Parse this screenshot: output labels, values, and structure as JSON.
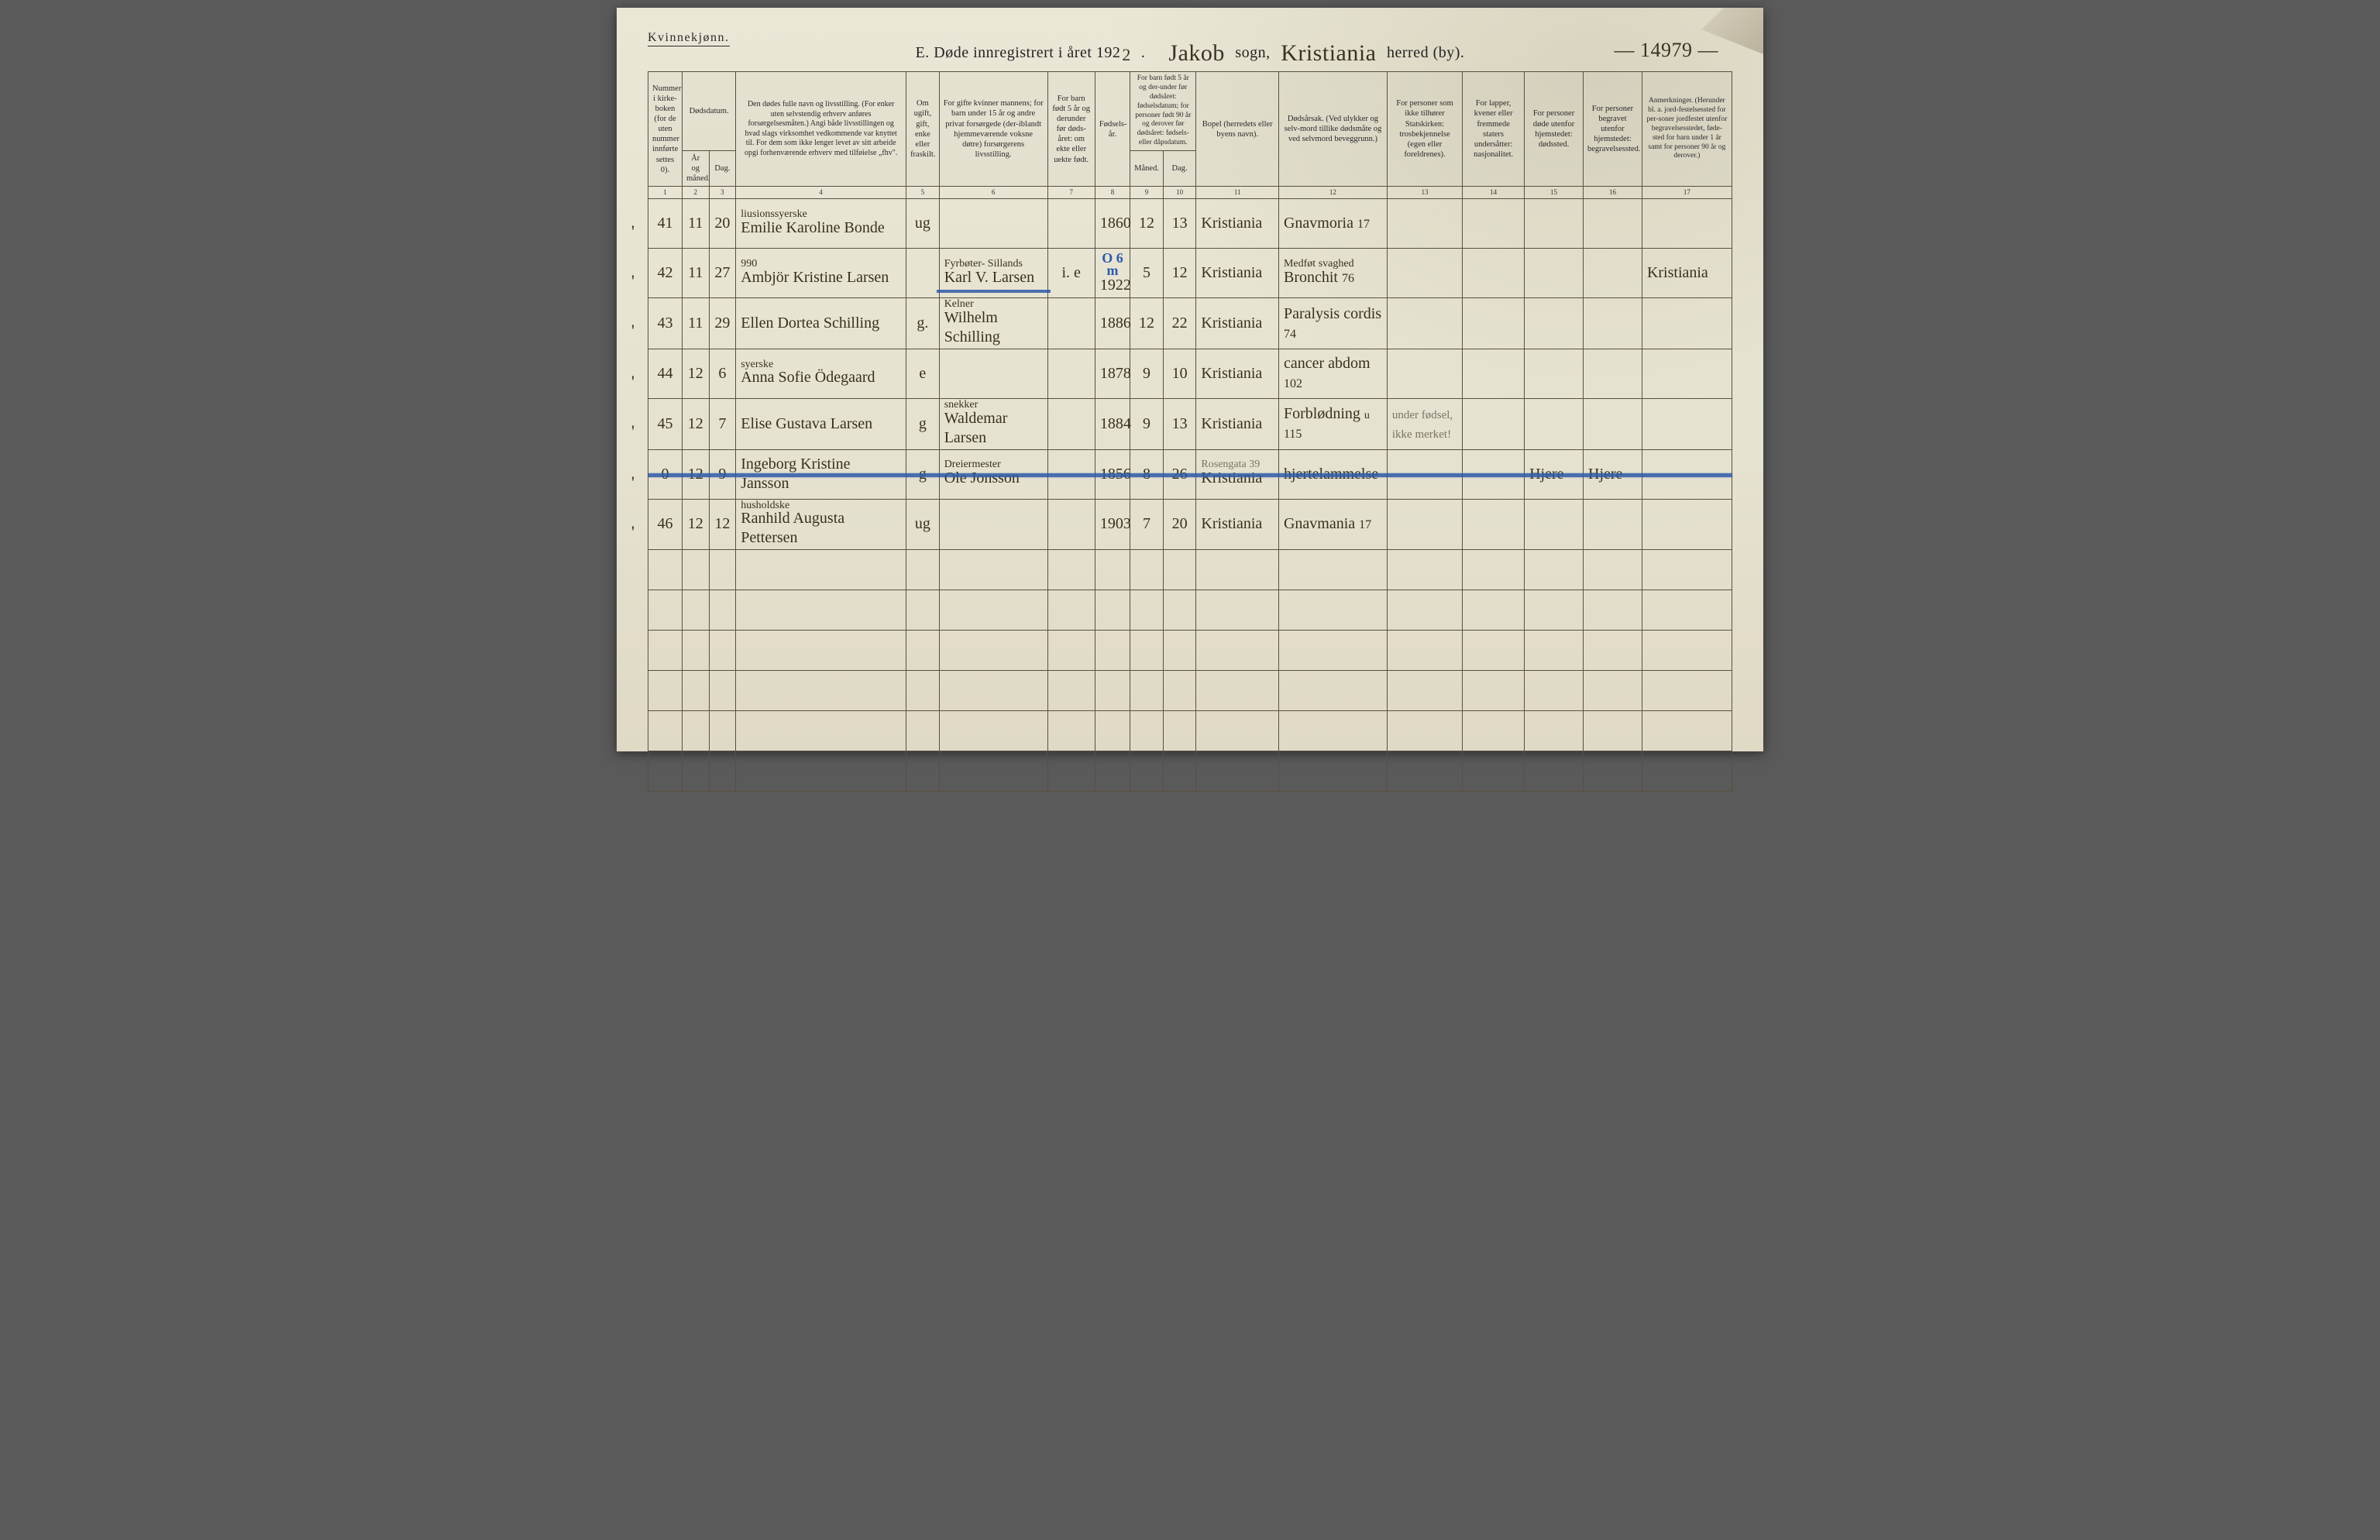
{
  "page": {
    "gender_label": "Kvinnekjønn.",
    "title_prefix": "E.   Døde innregistrert i året 192",
    "year_suffix": "2",
    "sogn_label": "sogn,",
    "herred_label": "herred (by).",
    "sogn_hw": "Jakob",
    "herred_hw": "Kristiania",
    "page_number_hw": "— 14979 —",
    "background_color": "#e8e4d4",
    "header_text_color": "#2a2a2a",
    "handwriting_color": "#3a2f1d",
    "pencil_color": "#7a7468",
    "blue_line_color": "#2d5aa8",
    "rule_color": "#585040"
  },
  "columns": {
    "widths_pct": [
      3.3,
      2.6,
      2.6,
      16.5,
      3.2,
      10.5,
      4.6,
      3.4,
      3.2,
      3.2,
      8.0,
      10.5,
      7.3,
      6.0,
      5.7,
      5.7,
      8.7
    ],
    "numbers": [
      "1",
      "2",
      "3",
      "4",
      "5",
      "6",
      "7",
      "8",
      "9",
      "10",
      "11",
      "12",
      "13",
      "14",
      "15",
      "16",
      "17"
    ],
    "headers_row1": {
      "c1": "Nummer i kirke-boken (for de uten nummer innførte settes 0).",
      "c2_3": "Dødsdatum.",
      "c4": "Den dødes fulle navn og livsstilling.\n(For enker uten selvstendig erhverv anføres forsørgelsesmåten.)\nAngi både livsstillingen og hvad slags virksomhet vedkommende var knyttet til.\nFor dem som ikke lenger levet av sitt arbeide opgi forhenværende erhverv med tilføielse „fhv\".",
      "c5": "Om ugift, gift, enke eller fraskilt.",
      "c6": "For gifte kvinner mannens; for barn under 15 år og andre privat forsørgede (der-iblandt hjemmeværende voksne døtre) forsørgerens livsstilling.",
      "c7": "For barn født 5 år og derunder før døds-året: om ekte eller uekte født.",
      "c8": "Fødsels-år.",
      "c9_10": "For barn født 5 år og der-under før dødsåret: fødselsdatum; for personer født 90 år og derover før dødsåret: fødsels- eller dåpsdatum.",
      "c11": "Bopel\n(herredets eller byens navn).",
      "c12": "Dødsårsak.\n(Ved ulykker og selv-mord tillike dødsmåte og ved selvmord beveggrunn.)",
      "c13": "For personer som ikke tilhører Statskirken:\ntrosbekjennelse (egen eller foreldrenes).",
      "c14": "For lapper, kvener eller fremmede staters undersåtter:\nnasjonalitet.",
      "c15": "For personer døde utenfor hjemstedet:\ndødssted.",
      "c16": "For personer begravet utenfor hjemstedet:\nbegravelsessted.",
      "c17": "Anmerkninger.\n(Herunder bl. a. jord-festelsessted for per-soner jordfestet utenfor begravelsesstedet, føde-sted for barn under 1 år samt for personer 90 år og derover.)"
    },
    "headers_row2": {
      "c2": "År og måned.",
      "c3": "Dag.",
      "c9": "Måned.",
      "c10": "Dag."
    }
  },
  "rows": [
    {
      "no": "41",
      "mo": "11",
      "day": "20",
      "name_sup": "liusionssyerske",
      "name": "Emilie Karoline Bonde",
      "status": "ug",
      "provider": "",
      "c7": "",
      "year": "1860",
      "b_mo": "12",
      "b_day": "13",
      "place": "Kristiania",
      "cause": "Gnavmoria",
      "c12_no": "17",
      "c13": "",
      "c14": "",
      "c15": "",
      "c16": "",
      "c17": ""
    },
    {
      "no": "42",
      "mo": "11",
      "day": "27",
      "name_sup": "990",
      "name": "Ambjör Kristine Larsen",
      "status": "",
      "provider_sup": "Fyrbøter- Sillands",
      "provider": "Karl V. Larsen",
      "c7": "i. e",
      "year": "1922",
      "b_mo": "5",
      "b_day": "12",
      "place": "Kristiania",
      "cause_sup": "Medføt svaghed",
      "cause": "Bronchit",
      "c12_no": "76",
      "c13": "",
      "c14": "",
      "c15": "",
      "c16": "",
      "c17": "Kristiania",
      "blue_over": "O 6 m",
      "blue_underline_provider": true
    },
    {
      "no": "43",
      "mo": "11",
      "day": "29",
      "name": "Ellen Dortea Schilling",
      "status": "g.",
      "provider_sup": "Kelner",
      "provider": "Wilhelm Schilling",
      "c7": "",
      "year": "1886",
      "b_mo": "12",
      "b_day": "22",
      "place": "Kristiania",
      "cause": "Paralysis cordis",
      "c12_no": "74",
      "c13": "",
      "c14": "",
      "c15": "",
      "c16": "",
      "c17": ""
    },
    {
      "no": "44",
      "mo": "12",
      "day": "6",
      "name_sup": "syerske",
      "name": "Anna Sofie Ödegaard",
      "status": "e",
      "provider": "",
      "c7": "",
      "year": "1878",
      "b_mo": "9",
      "b_day": "10",
      "place": "Kristiania",
      "cause": "cancer abdom",
      "c12_no": "102",
      "c13": "",
      "c14": "",
      "c15": "",
      "c16": "",
      "c17": ""
    },
    {
      "no": "45",
      "mo": "12",
      "day": "7",
      "name": "Elise Gustava Larsen",
      "status": "g",
      "provider_sup": "snekker",
      "provider": "Waldemar Larsen",
      "c7": "",
      "year": "1884",
      "b_mo": "9",
      "b_day": "13",
      "place": "Kristiania",
      "cause": "Forblødning",
      "c12_no": "115",
      "cause_sup2": "u",
      "c13_pencil": "under fødsel, ikke merket!",
      "c14": "",
      "c15": "",
      "c16": "",
      "c17": ""
    },
    {
      "no": "0",
      "mo": "12",
      "day": "9",
      "name": "Ingeborg Kristine Jansson",
      "status": "g",
      "provider_sup": "Dreiermester",
      "provider": "Ole Jonsson",
      "c7": "",
      "year": "1856",
      "b_mo": "8",
      "b_day": "26",
      "place_sup_pencil": "Rosengata 39",
      "place": "Kristiania",
      "cause": "hjertelammelse",
      "c12_no": "",
      "c13": "",
      "c14": "",
      "c15": "Hjere",
      "c16": "Hjere",
      "c17": "",
      "struck": true
    },
    {
      "no": "46",
      "mo": "12",
      "day": "12",
      "name_sup": "husholdske",
      "name": "Ranhild Augusta Pettersen",
      "status": "ug",
      "provider": "",
      "c7": "",
      "year": "1903",
      "b_mo": "7",
      "b_day": "20",
      "place": "Kristiania",
      "cause": "Gnavmania",
      "c12_no": "17",
      "c13": "",
      "c14": "",
      "c15": "",
      "c16": "",
      "c17": ""
    }
  ],
  "empty_rows": 6
}
